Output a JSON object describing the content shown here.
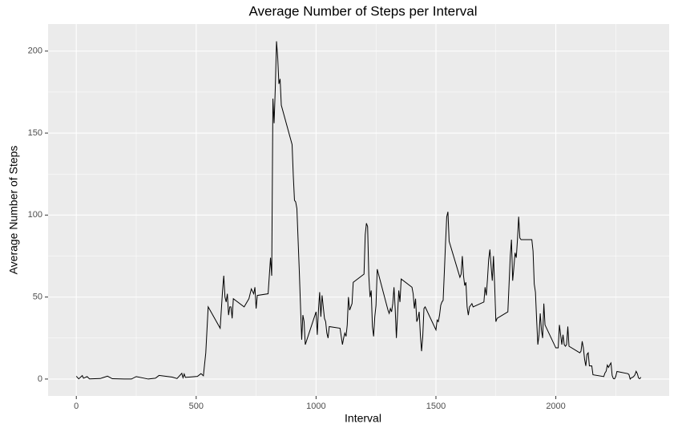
{
  "chart_data": {
    "type": "line",
    "title": "Average Number of Steps per Interval",
    "x_label": "Interval",
    "y_label": "Average Number of Steps",
    "x": [
      0,
      10,
      25,
      30,
      45,
      55,
      100,
      130,
      150,
      200,
      230,
      250,
      300,
      330,
      345,
      400,
      420,
      440,
      445,
      450,
      455,
      505,
      520,
      530,
      540,
      550,
      600,
      610,
      615,
      620,
      625,
      630,
      635,
      640,
      645,
      650,
      655,
      700,
      720,
      730,
      740,
      745,
      750,
      755,
      800,
      810,
      815,
      820,
      825,
      830,
      835,
      840,
      845,
      850,
      855,
      900,
      905,
      910,
      915,
      920,
      930,
      935,
      940,
      945,
      950,
      955,
      1000,
      1005,
      1010,
      1015,
      1020,
      1025,
      1030,
      1035,
      1040,
      1045,
      1050,
      1055,
      1100,
      1110,
      1115,
      1120,
      1125,
      1130,
      1135,
      1140,
      1145,
      1150,
      1155,
      1200,
      1205,
      1210,
      1215,
      1220,
      1225,
      1230,
      1235,
      1240,
      1245,
      1250,
      1255,
      1300,
      1305,
      1310,
      1315,
      1320,
      1325,
      1330,
      1335,
      1340,
      1345,
      1350,
      1355,
      1400,
      1405,
      1410,
      1415,
      1420,
      1425,
      1430,
      1435,
      1440,
      1445,
      1450,
      1455,
      1500,
      1505,
      1510,
      1515,
      1520,
      1525,
      1530,
      1535,
      1540,
      1545,
      1550,
      1555,
      1600,
      1605,
      1610,
      1615,
      1620,
      1625,
      1630,
      1635,
      1640,
      1645,
      1650,
      1655,
      1700,
      1705,
      1710,
      1715,
      1720,
      1725,
      1730,
      1735,
      1740,
      1745,
      1750,
      1755,
      1800,
      1805,
      1810,
      1815,
      1820,
      1825,
      1830,
      1835,
      1840,
      1845,
      1850,
      1855,
      1900,
      1905,
      1910,
      1915,
      1920,
      1925,
      1930,
      1935,
      1940,
      1945,
      1950,
      1955,
      2000,
      2005,
      2010,
      2015,
      2020,
      2025,
      2030,
      2035,
      2040,
      2045,
      2050,
      2055,
      2100,
      2105,
      2110,
      2115,
      2120,
      2125,
      2130,
      2135,
      2140,
      2145,
      2150,
      2155,
      2200,
      2205,
      2210,
      2215,
      2220,
      2225,
      2230,
      2235,
      2240,
      2245,
      2250,
      2255,
      2300,
      2305,
      2310,
      2315,
      2320,
      2325,
      2330,
      2335,
      2340,
      2345,
      2350,
      2355
    ],
    "values": [
      1.7,
      0.1,
      2.1,
      0.5,
      1.5,
      0.1,
      0.3,
      1.8,
      0.2,
      0,
      0,
      1.5,
      0,
      0.5,
      2.2,
      1.2,
      0.3,
      3.5,
      0.8,
      3.1,
      1,
      1.6,
      3.3,
      2,
      16,
      44,
      31,
      54,
      63,
      50,
      47,
      52,
      39,
      44,
      44,
      37,
      49,
      44,
      49,
      55,
      52,
      56,
      43,
      51,
      52,
      74,
      63,
      171,
      156,
      178,
      206,
      196,
      180,
      183,
      167,
      143,
      124,
      109,
      108,
      104,
      66,
      45,
      24,
      39,
      35,
      21,
      41,
      27,
      42,
      53,
      38,
      51,
      44,
      37,
      35,
      28,
      25,
      32,
      31,
      21,
      25,
      28,
      26,
      33,
      50,
      42,
      44,
      46,
      59,
      64,
      88,
      95,
      93,
      63,
      50,
      54,
      32,
      26,
      38,
      45,
      67,
      42,
      40,
      43,
      41,
      46,
      56,
      43,
      25,
      40,
      54,
      47,
      61,
      56,
      52,
      43,
      49,
      35,
      37,
      41,
      27,
      17,
      26,
      43,
      44,
      30,
      36,
      35,
      39,
      45,
      47,
      48,
      65,
      83,
      99,
      102,
      84,
      62,
      64,
      75,
      63,
      57,
      59,
      44,
      39,
      44,
      45,
      46,
      44,
      47,
      56,
      51,
      61,
      73,
      79,
      69,
      60,
      75,
      57,
      35,
      37,
      41,
      58,
      75,
      85,
      60,
      68,
      77,
      74,
      85,
      99,
      86,
      85,
      85,
      78,
      58,
      53,
      36,
      21,
      27,
      40,
      30,
      25,
      46,
      33,
      19,
      19,
      19,
      33,
      27,
      21,
      27,
      21,
      20,
      21,
      32,
      20,
      16,
      17,
      23,
      19,
      12,
      8,
      15,
      16,
      8,
      8,
      8,
      2.6,
      1.5,
      3.7,
      4.8,
      8.5,
      7.1,
      8.7,
      9.8,
      2.2,
      0.3,
      0.1,
      1.6,
      4.6,
      3.3,
      2.8,
      0,
      0.8,
      1,
      1.6,
      2.6,
      4.7,
      3.3,
      0.6,
      0.2,
      1.1
    ],
    "color": "#000000",
    "xlim": [
      -117.75,
      2472.75
    ],
    "ylim": [
      -10.3,
      216.5
    ],
    "xticks": [
      0,
      500,
      1000,
      1500,
      2000
    ],
    "yticks": [
      0,
      50,
      100,
      150,
      200
    ],
    "x_minor_grid": [
      250,
      750,
      1250,
      1750,
      2250
    ],
    "y_minor_grid": [
      25,
      75,
      125,
      175
    ],
    "grid": true
  }
}
